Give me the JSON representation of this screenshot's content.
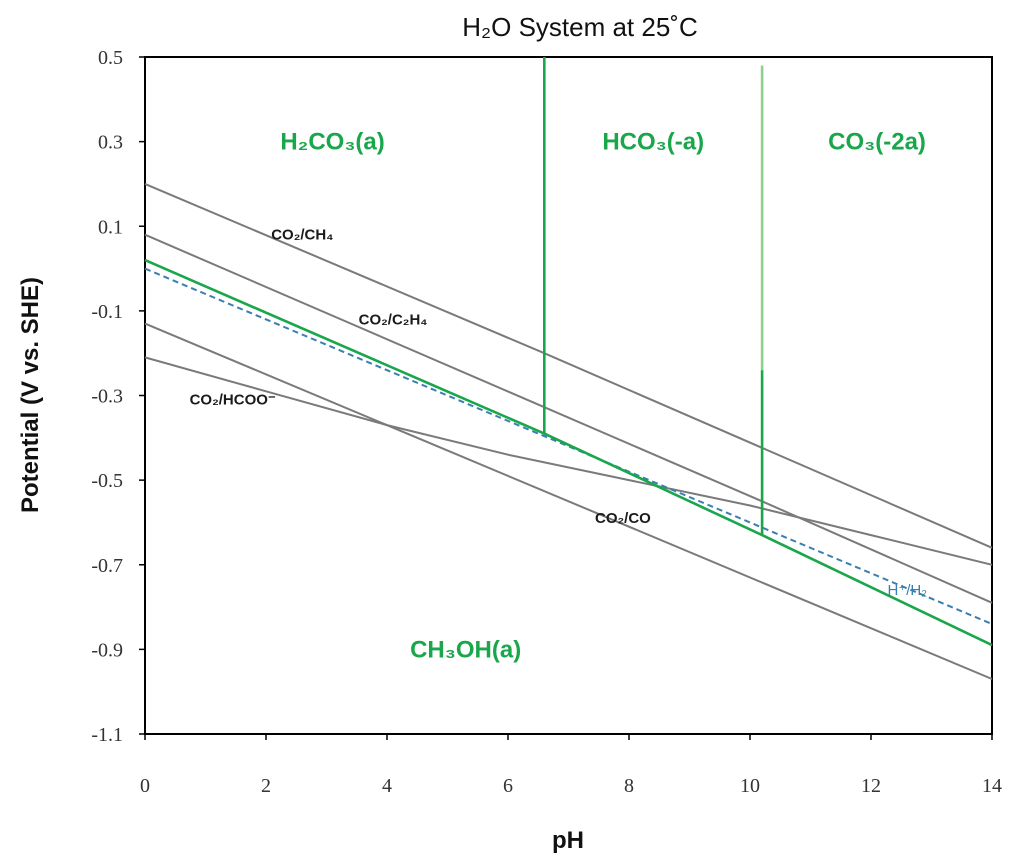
{
  "chart_data": {
    "type": "line",
    "title": "H₂O System at 25˚C",
    "xlabel": "pH",
    "ylabel": "Potential (V vs. SHE)",
    "xlim": [
      0,
      14
    ],
    "ylim": [
      -1.1,
      0.5
    ],
    "x_ticks": [
      0,
      2,
      4,
      6,
      8,
      10,
      12,
      14
    ],
    "x_tick_labels": [
      "0",
      "2",
      "4",
      "6",
      "8",
      "10",
      "12",
      "14"
    ],
    "y_ticks": [
      0.5,
      0.3,
      0.1,
      -0.1,
      -0.3,
      -0.5,
      -0.7,
      -0.9,
      -1.1
    ],
    "y_tick_labels": [
      "0.5",
      "0.3",
      "0.1",
      "-0.1",
      "-0.3",
      "-0.5",
      "-0.7",
      "-0.9",
      "-1.1"
    ],
    "grid": false,
    "colors": {
      "gray": "#7a7a7a",
      "green": "#1aa64b",
      "blue": "#3a7fb0"
    },
    "series": [
      {
        "color": "#7a7a7a",
        "dash": false,
        "x": [
          0,
          6.6,
          14
        ],
        "y": [
          0.2,
          -0.2,
          -0.66
        ]
      },
      {
        "color": "#7a7a7a",
        "dash": false,
        "x": [
          0,
          10.2,
          14
        ],
        "y": [
          0.08,
          -0.55,
          -0.79
        ]
      },
      {
        "color": "#7a7a7a",
        "dash": false,
        "x": [
          0,
          14
        ],
        "y": [
          -0.13,
          -0.97
        ]
      },
      {
        "color": "#7a7a7a",
        "dash": false,
        "x": [
          0,
          2,
          4,
          6,
          8,
          10,
          12,
          14
        ],
        "y": [
          -0.21,
          -0.29,
          -0.37,
          -0.44,
          -0.5,
          -0.56,
          -0.63,
          -0.7
        ]
      },
      {
        "color": "#3a7fb0",
        "dash": true,
        "x": [
          0,
          14
        ],
        "y": [
          0.0,
          -0.84
        ]
      },
      {
        "color": "#1aa64b",
        "dash": false,
        "x": [
          0,
          6.6,
          10.2,
          14
        ],
        "y": [
          0.02,
          -0.39,
          -0.63,
          -0.89
        ]
      }
    ],
    "boundaries": [
      {
        "x": 6.6,
        "y_from": -0.39,
        "y_to": 0.5,
        "color": "#1aa64b"
      },
      {
        "x": 10.2,
        "y_from": -0.63,
        "y_to": -0.24,
        "color": "#1aa64b"
      },
      {
        "x": 10.2,
        "y_from": -0.24,
        "y_to": 0.48,
        "color": "#8fd08f"
      }
    ],
    "regions": [
      {
        "label": "H₂CO₃(a)",
        "x": 3.1,
        "y": 0.3
      },
      {
        "label": "HCO₃(-a)",
        "x": 8.4,
        "y": 0.3
      },
      {
        "label": "CO₃(-2a)",
        "x": 12.1,
        "y": 0.3
      },
      {
        "label": "CH₃OH(a)",
        "x": 5.3,
        "y": -0.9
      }
    ],
    "annotations": [
      {
        "label": "CO₂/CH₄",
        "x": 2.6,
        "y": 0.08,
        "style": "dark"
      },
      {
        "label": "CO₂/C₂H₄",
        "x": 4.1,
        "y": -0.12,
        "style": "dark"
      },
      {
        "label": "CO₂/HCOO⁻",
        "x": 1.45,
        "y": -0.31,
        "style": "dark"
      },
      {
        "label": "CO₂/CO",
        "x": 7.9,
        "y": -0.59,
        "style": "dark"
      },
      {
        "label": "H⁺/H₂",
        "x": 12.6,
        "y": -0.76,
        "style": "blue"
      }
    ]
  }
}
